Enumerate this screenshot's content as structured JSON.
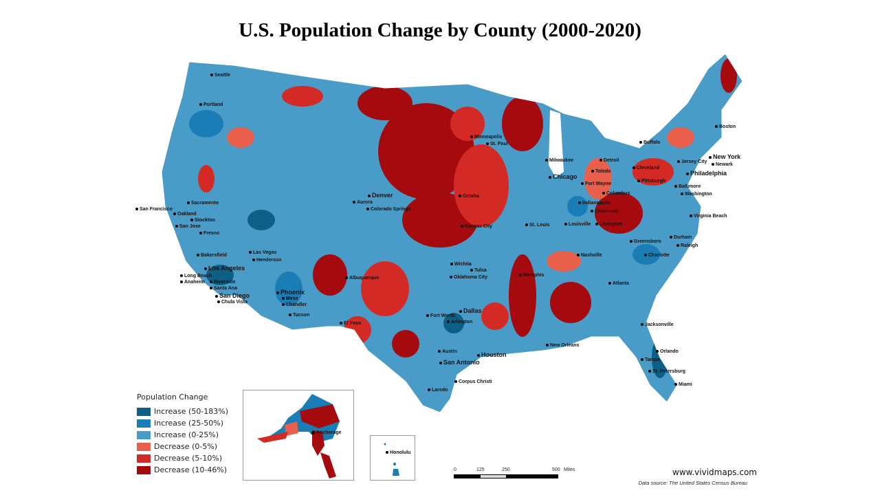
{
  "title": "U.S. Population Change by County (2000-2020)",
  "legend": {
    "title": "Population Change",
    "items": [
      {
        "label": "Increase (50-183%)",
        "color": "#0e5f86"
      },
      {
        "label": "Increase (25-50%)",
        "color": "#1a7db5"
      },
      {
        "label": "Increase (0-25%)",
        "color": "#4a9cc8"
      },
      {
        "label": "Decrease (0-5%)",
        "color": "#e8604c"
      },
      {
        "label": "Decrease (5-10%)",
        "color": "#d42a26"
      },
      {
        "label": "Decrease (10-46%)",
        "color": "#a50a0e"
      }
    ]
  },
  "cities": [
    "Seattle",
    "Portland",
    "San Francisco",
    "Oakland",
    "Sacramento",
    "Stockton",
    "San Jose",
    "Fresno",
    "Bakersfield",
    "Los Angeles",
    "Long Beach",
    "Riverside",
    "Anaheim",
    "Santa Ana",
    "San Diego",
    "Chula Vista",
    "Las Vegas",
    "Henderson",
    "Phoenix",
    "Mesa",
    "Chandler",
    "Tucson",
    "Albuquerque",
    "El Paso",
    "Denver",
    "Aurora",
    "Colorado Springs",
    "Minneapolis",
    "St. Paul",
    "Omaha",
    "Kansas City",
    "Wichita",
    "Tulsa",
    "Oklahoma City",
    "Fort Worth",
    "Dallas",
    "Arlington",
    "Austin",
    "San Antonio",
    "Houston",
    "Corpus Christi",
    "Laredo",
    "Milwaukee",
    "Chicago",
    "Detroit",
    "Toledo",
    "Cleveland",
    "Fort Wayne",
    "Columbus",
    "Indianapolis",
    "Cincinnati",
    "Louisville",
    "Lexington",
    "St. Louis",
    "Nashville",
    "Memphis",
    "Atlanta",
    "New Orleans",
    "Jacksonville",
    "Orlando",
    "Tampa",
    "St. Petersburg",
    "Miami",
    "Charlotte",
    "Greensboro",
    "Durham",
    "Raleigh",
    "Virginia Beach",
    "Washington",
    "Baltimore",
    "Philadelphia",
    "New York",
    "Newark",
    "Jersey City",
    "Pittsburgh",
    "Buffalo",
    "Boston"
  ],
  "insets": {
    "alaska_city": "Anchorage",
    "hawaii_city": "Honolulu"
  },
  "scale": {
    "ticks": [
      "0",
      "125",
      "250",
      "500"
    ],
    "unit": "Miles"
  },
  "site": "www.vividmaps.com",
  "source": "Data source: The United States Census Bureau"
}
